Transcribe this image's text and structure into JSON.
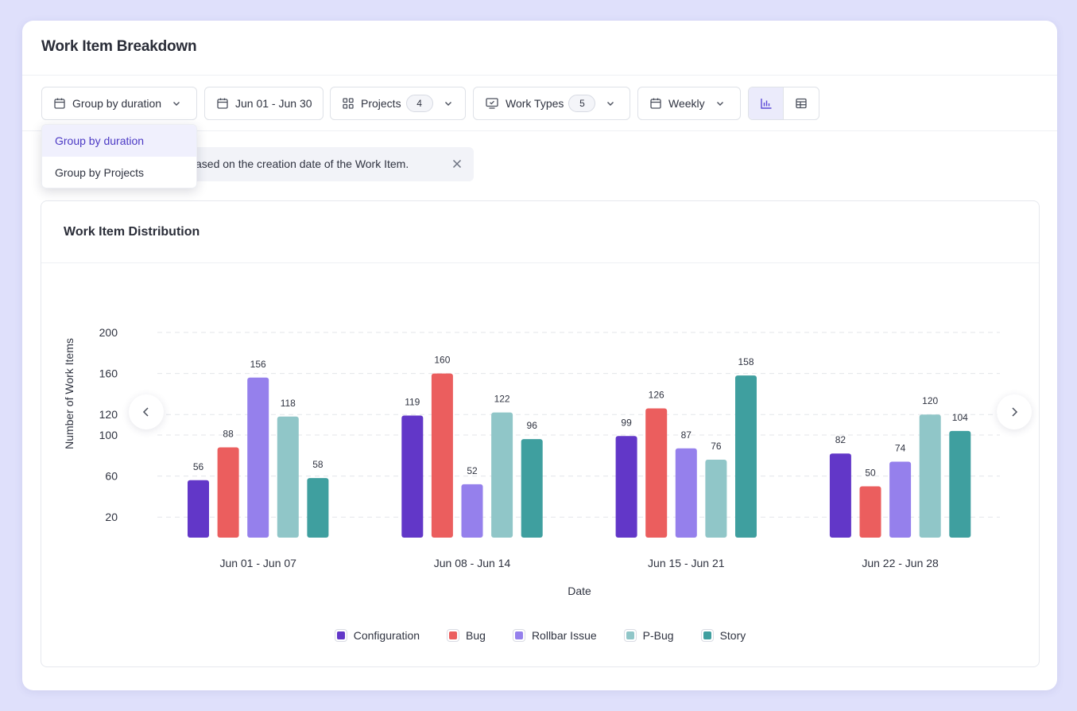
{
  "header": {
    "title": "Work Item Breakdown"
  },
  "toolbar": {
    "group_by_label": "Group by duration",
    "date_range_label": "Jun 01 - Jun 30",
    "projects_label": "Projects",
    "projects_count": "4",
    "work_types_label": "Work Types",
    "work_types_count": "5",
    "interval_label": "Weekly"
  },
  "dropdown": {
    "items": [
      {
        "label": "Group by duration",
        "selected": true
      },
      {
        "label": "Group by Projects",
        "selected": false
      }
    ]
  },
  "banner": {
    "text": "ased on the creation date of the Work Item."
  },
  "icons": {
    "calendar": "calendar-icon",
    "grid": "grid-icon",
    "work_types": "monitor-check-icon",
    "chevron": "chevron-down-icon",
    "bar_chart": "bar-chart-icon",
    "table": "table-icon",
    "close": "close-icon",
    "prev": "chevron-left-icon",
    "next": "chevron-right-icon"
  },
  "chart_data": {
    "type": "bar",
    "title": "Work Item Distribution",
    "xlabel": "Date",
    "ylabel": "Number of Work Items",
    "y_ticks": [
      20,
      60,
      100,
      120,
      160,
      200
    ],
    "categories": [
      "Jun 01 - Jun 07",
      "Jun 08 - Jun 14",
      "Jun 15 - Jun 21",
      "Jun 22 - Jun 28"
    ],
    "series": [
      {
        "name": "Configuration",
        "color": "#6237c8",
        "values": [
          56,
          119,
          99,
          82
        ]
      },
      {
        "name": "Bug",
        "color": "#eb5e5e",
        "values": [
          88,
          160,
          126,
          50
        ]
      },
      {
        "name": "Rollbar Issue",
        "color": "#9580ec",
        "values": [
          156,
          52,
          87,
          74
        ]
      },
      {
        "name": "P-Bug",
        "color": "#90c6c8",
        "values": [
          118,
          122,
          76,
          120
        ]
      },
      {
        "name": "Story",
        "color": "#3f9f9f",
        "values": [
          58,
          96,
          158,
          104
        ]
      }
    ],
    "grid": true,
    "legend_position": "bottom-center"
  }
}
